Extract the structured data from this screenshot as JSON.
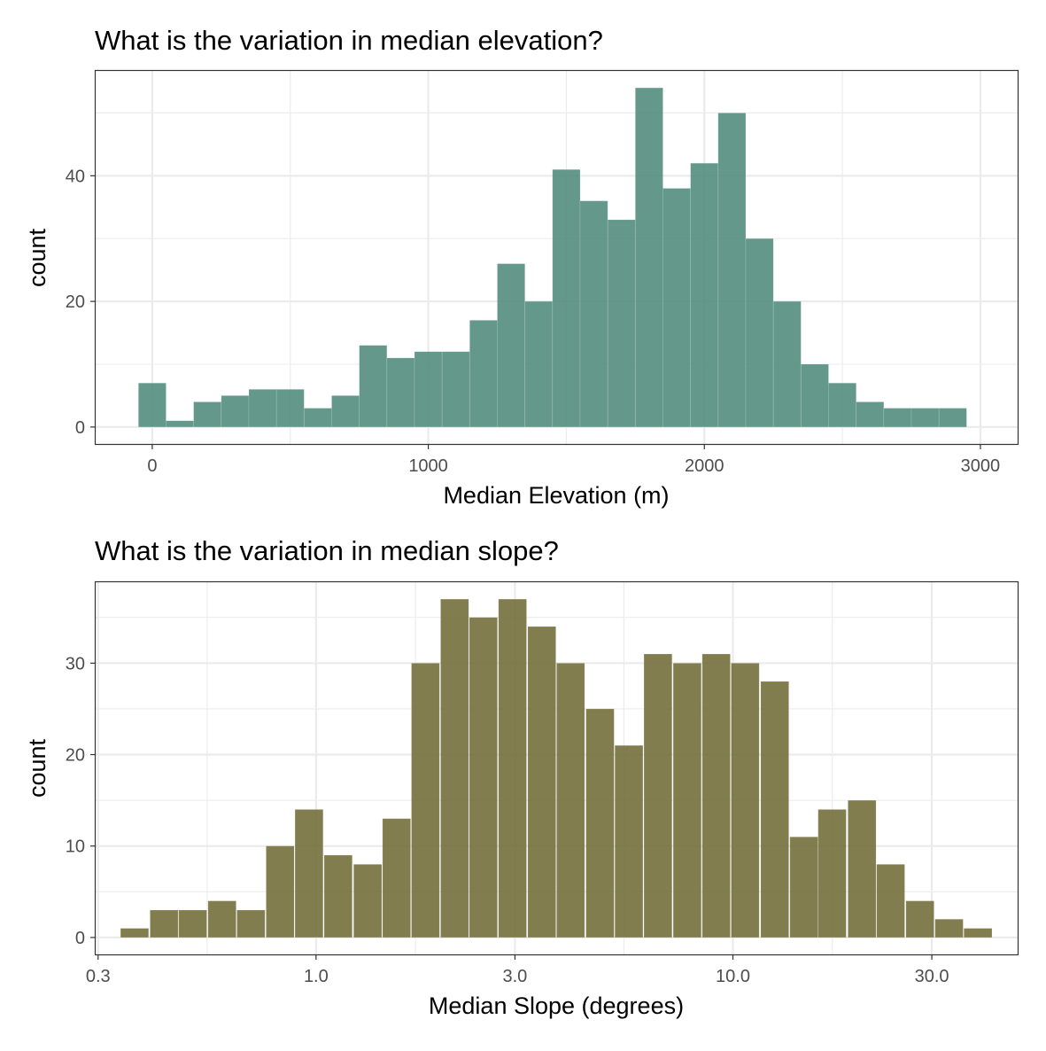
{
  "chart_data": [
    {
      "type": "bar",
      "title": "What is the variation in median elevation?",
      "xlabel": "Median Elevation (m)",
      "ylabel": "count",
      "x_scale": "linear",
      "xlim": [
        -205,
        3135
      ],
      "ylim": [
        -2.7,
        56.7
      ],
      "bin_width": 100,
      "bin_centers": [
        0,
        100,
        200,
        300,
        400,
        500,
        600,
        700,
        800,
        900,
        1000,
        1100,
        1200,
        1300,
        1400,
        1500,
        1600,
        1700,
        1800,
        1900,
        2000,
        2100,
        2200,
        2300,
        2400,
        2500,
        2600,
        2700,
        2800,
        2900
      ],
      "values": [
        7,
        1,
        4,
        5,
        6,
        6,
        3,
        5,
        13,
        11,
        12,
        12,
        17,
        26,
        20,
        41,
        36,
        33,
        54,
        38,
        42,
        50,
        30,
        20,
        10,
        7,
        4,
        3,
        3,
        3
      ],
      "x_major_ticks": [
        0,
        1000,
        2000,
        3000
      ],
      "x_tick_labels": [
        "0",
        "1000",
        "2000",
        "3000"
      ],
      "x_minor_ticks": [
        500,
        1500,
        2500
      ],
      "y_major_ticks": [
        0,
        20,
        40
      ],
      "y_tick_labels": [
        "0",
        "20",
        "40"
      ],
      "y_minor_ticks": [
        10,
        30,
        50
      ],
      "color": "#4e8a7a",
      "grid": true
    },
    {
      "type": "bar",
      "title": "What is the variation in median slope?",
      "xlabel": "Median Slope (degrees)",
      "ylabel": "count",
      "x_scale": "log10",
      "xlim": [
        0.296,
        48.2
      ],
      "ylim": [
        -1.85,
        38.85
      ],
      "bin_width_log10": 0.0673,
      "bin_centers": [
        0.367,
        0.432,
        0.506,
        0.595,
        0.698,
        0.82,
        0.962,
        1.13,
        1.33,
        1.56,
        1.83,
        2.15,
        2.52,
        2.96,
        3.48,
        4.08,
        4.8,
        5.63,
        6.61,
        7.77,
        9.12,
        10.7,
        12.6,
        14.8,
        17.3,
        20.4,
        23.9,
        28.1,
        33.0,
        38.7
      ],
      "values": [
        1,
        3,
        3,
        4,
        3,
        10,
        14,
        9,
        8,
        13,
        30,
        37,
        35,
        37,
        34,
        30,
        25,
        21,
        31,
        30,
        31,
        30,
        28,
        11,
        14,
        15,
        8,
        4,
        2,
        1
      ],
      "x_major_ticks": [
        0.3,
        1.0,
        3.0,
        10.0,
        30.0
      ],
      "x_tick_labels": [
        "0.3",
        "1.0",
        "3.0",
        "10.0",
        "30.0"
      ],
      "x_minor_ticks": [
        0.548,
        1.732,
        5.477,
        17.32
      ],
      "y_major_ticks": [
        0,
        10,
        20,
        30
      ],
      "y_tick_labels": [
        "0",
        "10",
        "20",
        "30"
      ],
      "y_minor_ticks": [
        5,
        15,
        25,
        35
      ],
      "color": "#6f6b35",
      "grid": true
    }
  ]
}
